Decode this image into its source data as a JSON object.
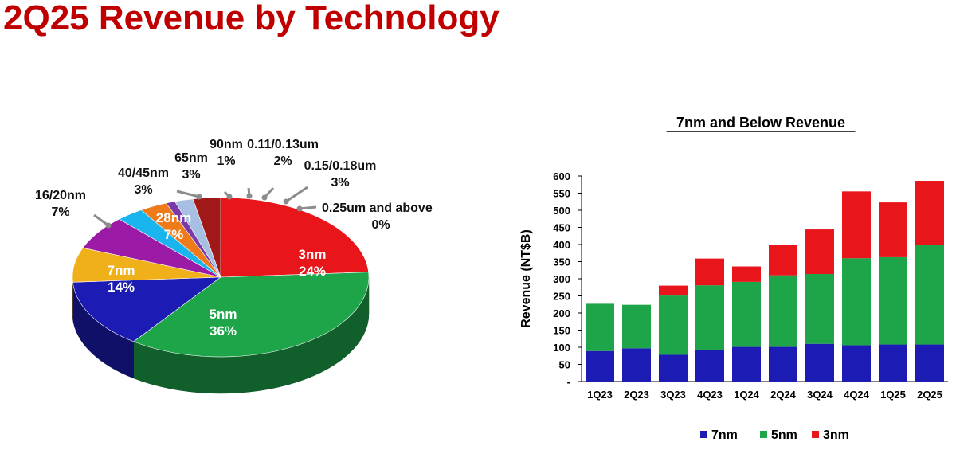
{
  "title": "2Q25 Revenue by Technology",
  "chart_data": [
    {
      "type": "pie",
      "slices": [
        {
          "label": "3nm",
          "pct": "24%",
          "value": 24,
          "color": "#e8151b"
        },
        {
          "label": "5nm",
          "pct": "36%",
          "value": 36,
          "color": "#1ea54a"
        },
        {
          "label": "7nm",
          "pct": "14%",
          "value": 14,
          "color": "#1c1cb4"
        },
        {
          "label": "16/20nm",
          "pct": "7%",
          "value": 7,
          "color": "#f0b01a"
        },
        {
          "label": "28nm",
          "pct": "7%",
          "value": 7,
          "color": "#9b1ba6"
        },
        {
          "label": "40/45nm",
          "pct": "3%",
          "value": 3,
          "color": "#1ab4ee"
        },
        {
          "label": "65nm",
          "pct": "3%",
          "value": 3,
          "color": "#ee7a1a"
        },
        {
          "label": "90nm",
          "pct": "1%",
          "value": 1,
          "color": "#7a3aa8"
        },
        {
          "label": "0.11/0.13um",
          "pct": "2%",
          "value": 2,
          "color": "#a6bfe2"
        },
        {
          "label": "0.15/0.18um",
          "pct": "3%",
          "value": 3,
          "color": "#a01818"
        },
        {
          "label": "0.25um and above",
          "pct": "0%",
          "value": 0,
          "color": "#888888"
        }
      ]
    },
    {
      "type": "bar",
      "stacked": true,
      "title": "7nm and Below Revenue",
      "ylabel": "Revenue (NT$B)",
      "ylim": [
        0,
        600
      ],
      "yticks": [
        "600",
        "550",
        "500",
        "450",
        "400",
        "350",
        "300",
        "250",
        "200",
        "150",
        "100",
        "50",
        "-"
      ],
      "categories": [
        "1Q23",
        "2Q23",
        "3Q23",
        "4Q23",
        "1Q24",
        "2Q24",
        "3Q24",
        "4Q24",
        "1Q25",
        "2Q25"
      ],
      "series": [
        {
          "name": "7nm",
          "color": "#1c1cb4",
          "values": [
            89,
            97,
            78,
            93,
            101,
            101,
            110,
            106,
            108,
            108
          ]
        },
        {
          "name": "5nm",
          "color": "#1ea54a",
          "values": [
            138,
            127,
            173,
            188,
            190,
            209,
            204,
            254,
            255,
            290
          ]
        },
        {
          "name": "3nm",
          "color": "#e8151b",
          "values": [
            0,
            0,
            29,
            78,
            45,
            90,
            130,
            195,
            160,
            188
          ]
        }
      ],
      "legend": "bottom"
    }
  ]
}
